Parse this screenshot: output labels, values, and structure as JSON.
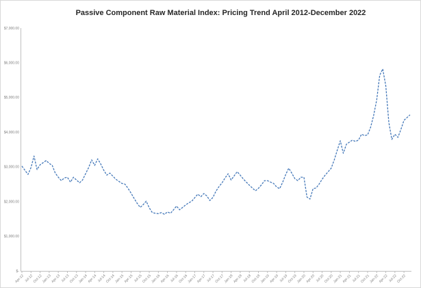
{
  "window": {
    "background": "#FFFFFF",
    "border_color": "#D8D8D8"
  },
  "chart_data": {
    "type": "line",
    "title": "Passive Component Raw Material Index: Pricing Trend April 2012-December 2022",
    "xlabel": "",
    "ylabel": "",
    "x_start": "Apr-12",
    "x_end": "Dec-22",
    "frequency": "monthly",
    "ylim": [
      0,
      7000
    ],
    "grid": false,
    "legend_position": "none",
    "axis_color": "#BFBFBF",
    "tick_label_color": "#808080",
    "title_color": "#262626",
    "y_tick_labels": [
      "$7,000.00",
      "$6,000.00",
      "$5,000.00",
      "$4,000.00",
      "$3,000.00",
      "$2,000.00",
      "$1,000.00",
      "$-"
    ],
    "y_tick_values": [
      7000,
      6000,
      5000,
      4000,
      3000,
      2000,
      1000,
      0
    ],
    "x_tick_labels": [
      "Apr-12",
      "Jul-12",
      "Oct-12",
      "Jan-13",
      "Apr-13",
      "Jul-13",
      "Oct-13",
      "Jan-14",
      "Apr-14",
      "Jul-14",
      "Oct-14",
      "Jan-15",
      "Apr-15",
      "Jul-15",
      "Oct-15",
      "Jan-16",
      "Apr-16",
      "Jul-16",
      "Oct-16",
      "Jan-17",
      "Apr-17",
      "Jul-17",
      "Oct-17",
      "Jan-18",
      "Apr-18",
      "Jul-18",
      "Oct-18",
      "Jan-19",
      "Apr-19",
      "Jul-19",
      "Oct-19",
      "Jan-20",
      "Apr-20",
      "Jul-20",
      "Oct-20",
      "Jan-21",
      "Apr-21",
      "Jul-21",
      "Oct-21",
      "Jan-22",
      "Apr-22",
      "Jul-22",
      "Oct-22"
    ],
    "series": [
      {
        "name": "Passive Component Raw Material Index",
        "color": "#4377B8",
        "line_style": "dashed",
        "values": [
          3020,
          2900,
          2780,
          2980,
          3310,
          2920,
          3060,
          3120,
          3180,
          3100,
          3040,
          2820,
          2700,
          2600,
          2680,
          2700,
          2560,
          2700,
          2620,
          2540,
          2620,
          2800,
          2980,
          3200,
          3040,
          3230,
          3080,
          2900,
          2760,
          2820,
          2730,
          2640,
          2580,
          2520,
          2500,
          2380,
          2240,
          2090,
          1950,
          1830,
          1910,
          2010,
          1820,
          1680,
          1660,
          1650,
          1680,
          1630,
          1700,
          1660,
          1760,
          1870,
          1760,
          1830,
          1900,
          1960,
          2010,
          2110,
          2210,
          2140,
          2230,
          2160,
          2030,
          2120,
          2300,
          2430,
          2540,
          2680,
          2800,
          2620,
          2740,
          2860,
          2760,
          2650,
          2560,
          2470,
          2390,
          2310,
          2380,
          2480,
          2600,
          2600,
          2560,
          2520,
          2420,
          2370,
          2560,
          2780,
          2960,
          2820,
          2660,
          2600,
          2700,
          2700,
          2130,
          2070,
          2370,
          2390,
          2500,
          2640,
          2760,
          2860,
          2960,
          3200,
          3480,
          3750,
          3390,
          3650,
          3710,
          3770,
          3730,
          3770,
          3940,
          3900,
          3920,
          4140,
          4480,
          4930,
          5640,
          5820,
          5330,
          4280,
          3790,
          3940,
          3850,
          4080,
          4340,
          4420,
          4500
        ]
      }
    ]
  }
}
